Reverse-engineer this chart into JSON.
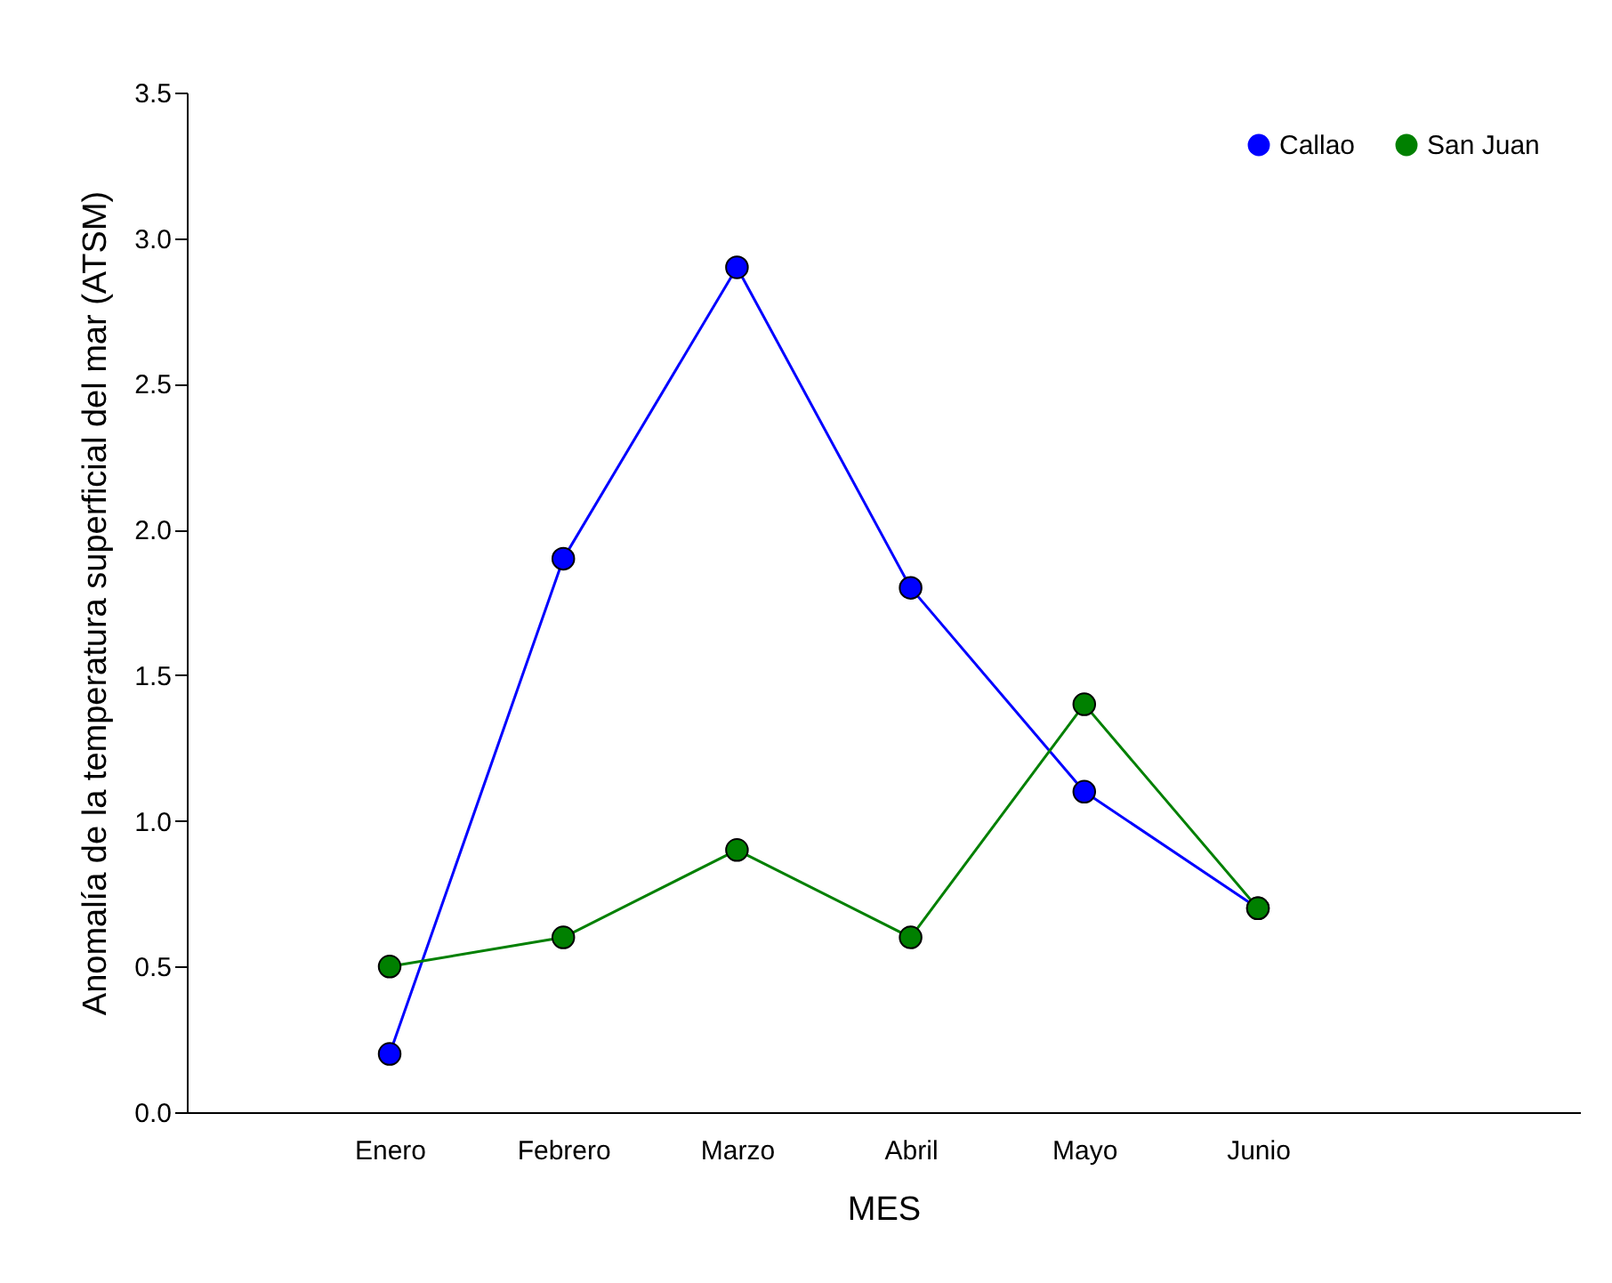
{
  "chart_data": {
    "type": "line",
    "xlabel": "MES",
    "ylabel": "Anomalía de la temperatura superficial del mar (ATSM)",
    "categories": [
      "Enero",
      "Febrero",
      "Marzo",
      "Abril",
      "Mayo",
      "Junio"
    ],
    "series": [
      {
        "name": "Callao",
        "color": "#0000ff",
        "values": [
          0.2,
          1.9,
          2.9,
          1.8,
          1.1,
          0.7
        ]
      },
      {
        "name": "San Juan",
        "color": "#008000",
        "values": [
          0.5,
          0.6,
          0.9,
          0.6,
          1.4,
          0.7
        ]
      }
    ],
    "ylim": [
      0,
      3.5
    ],
    "yticks": [
      {
        "value": 0,
        "label": "0.0"
      },
      {
        "value": 0.5,
        "label": "0.5"
      },
      {
        "value": 1,
        "label": "1.0"
      },
      {
        "value": 1.5,
        "label": "1.5"
      },
      {
        "value": 2,
        "label": "2.0"
      },
      {
        "value": 2.5,
        "label": "2.5"
      },
      {
        "value": 3,
        "label": "3.0"
      },
      {
        "value": 3.5,
        "label": "3.5"
      }
    ],
    "grid": false,
    "legend": "top right",
    "marker": "circle",
    "line_style": "solid"
  }
}
